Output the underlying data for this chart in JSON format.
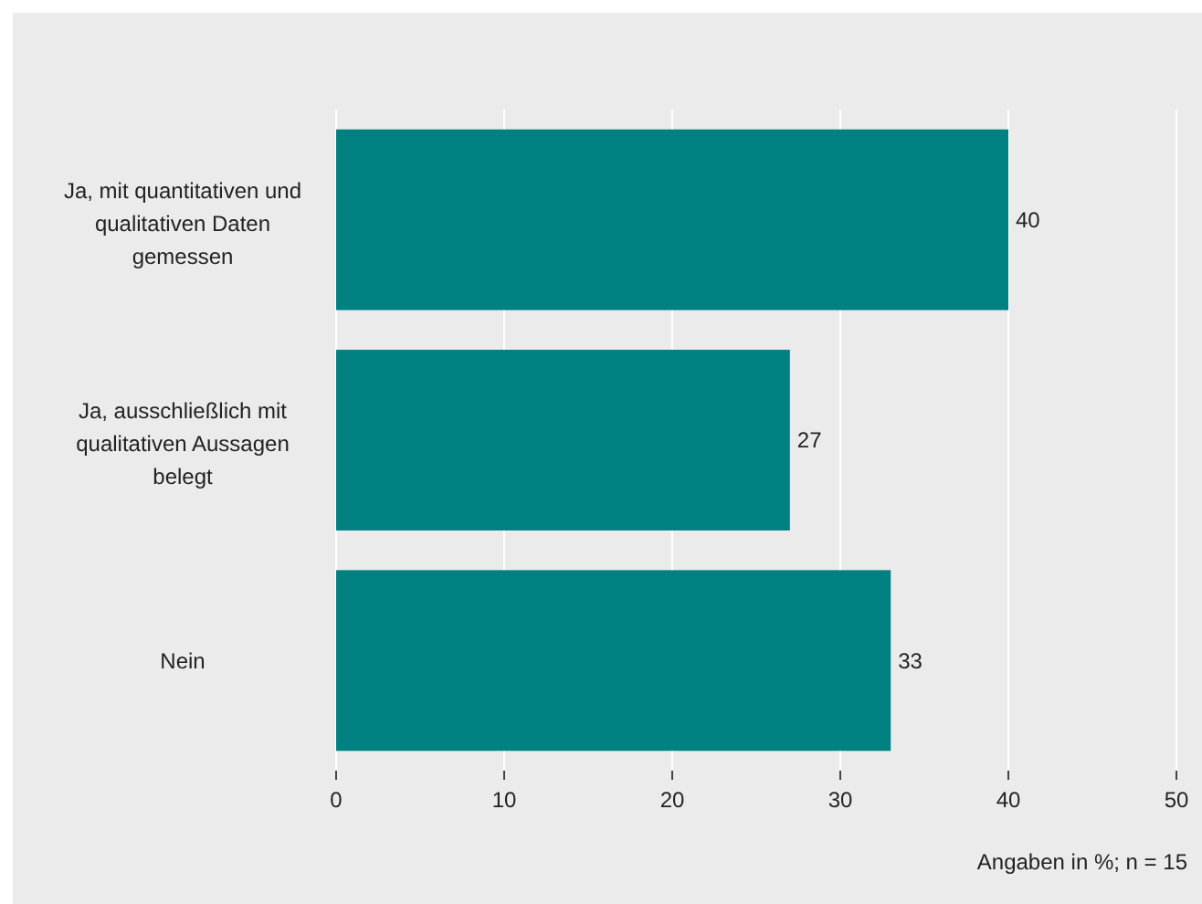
{
  "chart_data": {
    "type": "bar",
    "orientation": "horizontal",
    "categories": [
      "Ja, mit quantitativen und qualitativen Daten gemessen",
      "Ja, ausschließlich mit qualitativen Aussagen belegt",
      "Nein"
    ],
    "values": [
      40,
      27,
      33
    ],
    "color": "#008080",
    "xlim": [
      0,
      50
    ],
    "xticks": [
      0,
      10,
      20,
      30,
      40,
      50
    ],
    "grid": "x",
    "data_labels": true,
    "annotations": [
      "Angaben in %; n = 15"
    ]
  }
}
